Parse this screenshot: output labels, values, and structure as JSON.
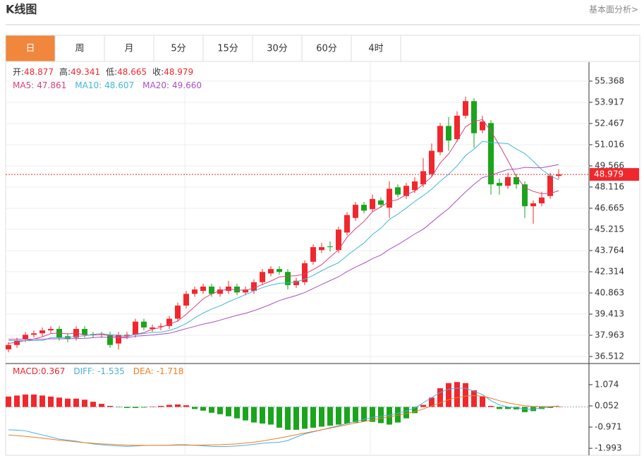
{
  "header": {
    "title": "K线图",
    "link": "基本面分析>"
  },
  "tabs": [
    "日",
    "周",
    "月",
    "5分",
    "15分",
    "30分",
    "60分",
    "4时"
  ],
  "active_tab": 0,
  "chart_data": [
    {
      "type": "candlestick",
      "ohlc_labels": [
        "开:",
        "高:",
        "低:",
        "收:"
      ],
      "up_color": "#f0282d",
      "down_color": "#1aa51c",
      "open": [
        37.0,
        37.3,
        37.7,
        38.0,
        38.1,
        38.3,
        38.4,
        37.9,
        37.8,
        38.4,
        38.05,
        38.0,
        38.0,
        37.4,
        37.9,
        38.0,
        38.9,
        38.4,
        38.55,
        38.6,
        39.1,
        40.0,
        40.8,
        41.0,
        41.3,
        40.8,
        41.0,
        41.3,
        40.9,
        41.0,
        41.6,
        42.2,
        42.5,
        42.3,
        41.4,
        41.6,
        43.0,
        43.8,
        44.05,
        43.8,
        45.0,
        46.0,
        46.9,
        46.6,
        47.2,
        46.7,
        48.1,
        47.5,
        47.9,
        48.3,
        49.0,
        50.5,
        52.3,
        51.4,
        53.0,
        54.0,
        52.0,
        52.5,
        48.4,
        48.2,
        48.8,
        48.3,
        46.8,
        47.0,
        47.5,
        48.877
      ],
      "high": [
        37.5,
        37.8,
        38.2,
        38.3,
        38.5,
        38.6,
        38.6,
        38.1,
        38.6,
        38.6,
        38.2,
        38.2,
        38.2,
        38.2,
        38.2,
        39.1,
        39.1,
        38.7,
        38.8,
        39.3,
        40.2,
        41.0,
        41.3,
        41.5,
        41.5,
        41.3,
        41.7,
        41.5,
        41.3,
        41.8,
        42.5,
        42.7,
        42.7,
        42.5,
        41.9,
        43.1,
        44.2,
        44.3,
        44.4,
        45.4,
        46.4,
        47.1,
        47.1,
        47.6,
        47.4,
        48.5,
        48.3,
        48.4,
        48.8,
        50.1,
        51.1,
        52.5,
        52.9,
        53.3,
        54.3,
        54.2,
        53.0,
        52.7,
        48.7,
        49.1,
        49.0,
        48.5,
        47.2,
        47.8,
        49.1,
        49.341
      ],
      "low": [
        36.8,
        37.1,
        37.5,
        37.8,
        37.9,
        38.1,
        37.6,
        37.5,
        37.6,
        37.8,
        37.8,
        37.8,
        37.1,
        37.0,
        37.7,
        37.8,
        38.3,
        38.2,
        38.3,
        38.4,
        38.9,
        39.8,
        40.6,
        40.8,
        40.6,
        40.6,
        40.8,
        40.7,
        40.7,
        40.8,
        41.4,
        42.0,
        42.1,
        41.1,
        41.2,
        41.4,
        42.8,
        43.6,
        43.7,
        43.6,
        44.8,
        45.8,
        46.3,
        46.4,
        46.7,
        46.0,
        47.4,
        47.3,
        47.7,
        48.1,
        48.8,
        50.3,
        50.6,
        51.2,
        52.8,
        50.8,
        51.8,
        47.6,
        47.6,
        48.0,
        48.0,
        46.0,
        45.6,
        46.8,
        47.3,
        48.665
      ],
      "close": [
        37.3,
        37.6,
        38.0,
        38.1,
        38.3,
        38.4,
        37.8,
        37.7,
        38.4,
        38.0,
        38.0,
        38.05,
        37.3,
        38.0,
        38.0,
        38.9,
        38.5,
        38.5,
        38.6,
        39.1,
        40.0,
        40.8,
        41.1,
        41.3,
        40.8,
        41.1,
        41.3,
        40.9,
        41.1,
        41.6,
        42.3,
        42.5,
        42.3,
        41.4,
        41.7,
        42.9,
        44.0,
        44.0,
        44.0,
        45.2,
        46.2,
        46.9,
        46.5,
        47.3,
        46.9,
        48.0,
        47.6,
        48.2,
        48.5,
        49.2,
        50.6,
        52.3,
        51.3,
        53.0,
        54.0,
        51.8,
        52.6,
        48.3,
        48.2,
        48.8,
        48.3,
        46.8,
        47.0,
        47.4,
        48.9,
        48.979
      ],
      "ma": [
        {
          "name": "MA5:",
          "color": "#d9417a",
          "values": [
            37.4,
            37.5,
            37.6,
            37.7,
            37.86,
            38.08,
            38.12,
            38.06,
            38.12,
            37.98,
            37.98,
            38.02,
            37.94,
            37.86,
            37.86,
            38.04,
            38.14,
            38.38,
            38.5,
            38.72,
            38.94,
            39.4,
            39.92,
            40.46,
            40.8,
            41.02,
            41.12,
            41.08,
            41.04,
            41.2,
            41.44,
            41.68,
            41.96,
            42.02,
            42.04,
            42.16,
            42.46,
            42.8,
            43.32,
            43.82,
            44.68,
            45.26,
            45.76,
            46.42,
            46.76,
            47.12,
            47.26,
            47.6,
            47.84,
            48.3,
            48.82,
            49.76,
            50.38,
            51.28,
            52.24,
            52.6,
            52.74,
            51.94,
            50.98,
            49.94,
            48.84,
            48.08,
            47.82,
            47.66,
            47.68,
            47.861
          ]
        },
        {
          "name": "MA10:",
          "color": "#3fb8d6",
          "values": [
            37.6,
            37.6,
            37.6,
            37.6,
            37.6,
            37.8,
            37.8,
            37.8,
            37.9,
            37.92,
            38.03,
            38.07,
            38.0,
            37.99,
            37.92,
            38.01,
            38.08,
            38.16,
            38.18,
            38.29,
            38.49,
            38.77,
            39.15,
            39.48,
            39.76,
            39.98,
            40.26,
            40.5,
            40.75,
            41.0,
            41.23,
            41.4,
            41.52,
            41.55,
            41.62,
            41.8,
            42.07,
            42.38,
            42.67,
            42.93,
            43.42,
            43.86,
            44.28,
            44.87,
            45.29,
            45.9,
            46.26,
            46.68,
            47.13,
            47.53,
            47.97,
            48.51,
            48.99,
            49.56,
            50.27,
            50.71,
            51.25,
            51.16,
            51.13,
            51.09,
            50.72,
            50.41,
            49.88,
            49.31,
            48.9,
            48.607
          ]
        },
        {
          "name": "MA20:",
          "color": "#a94fc4",
          "value_label": "49.660",
          "values": [
            37.7,
            37.7,
            37.7,
            37.7,
            37.7,
            37.72,
            37.72,
            37.73,
            37.74,
            37.75,
            37.8,
            37.85,
            37.8,
            37.8,
            37.78,
            37.9,
            37.94,
            37.98,
            38.04,
            38.1,
            38.26,
            38.42,
            38.57,
            38.73,
            38.84,
            39.0,
            39.17,
            39.33,
            39.47,
            39.65,
            39.86,
            40.09,
            40.34,
            40.52,
            40.69,
            40.89,
            41.17,
            41.44,
            41.71,
            41.97,
            42.33,
            42.63,
            42.9,
            43.21,
            43.46,
            43.85,
            44.17,
            44.53,
            44.9,
            45.23,
            45.7,
            46.19,
            46.64,
            47.22,
            47.78,
            48.3,
            48.76,
            48.92,
            49.13,
            49.31,
            49.35,
            49.46,
            49.44,
            49.44,
            49.54,
            49.66
          ]
        }
      ],
      "ylim": [
        36.03,
        56.67
      ],
      "yticks": [
        {
          "value": 55.368,
          "label": "55.368"
        },
        {
          "value": 53.917,
          "label": "53.917"
        },
        {
          "value": 52.467,
          "label": "52.467"
        },
        {
          "value": 51.016,
          "label": "51.016"
        },
        {
          "value": 49.566,
          "label": "49.566"
        },
        {
          "value": 48.116,
          "label": "48.116"
        },
        {
          "value": 46.665,
          "label": "46.665"
        },
        {
          "value": 45.215,
          "label": "45.215"
        },
        {
          "value": 43.764,
          "label": "43.764"
        },
        {
          "value": 42.314,
          "label": "42.314"
        },
        {
          "value": 40.863,
          "label": "40.863"
        },
        {
          "value": 39.413,
          "label": "39.413"
        },
        {
          "value": 37.963,
          "label": "37.963"
        },
        {
          "value": 36.512,
          "label": "36.512"
        }
      ],
      "grid": true
    },
    {
      "type": "macd",
      "histogram": [
        0.5,
        0.55,
        0.6,
        0.6,
        0.55,
        0.5,
        0.45,
        0.4,
        0.4,
        0.35,
        0.25,
        0.15,
        0.05,
        -0.02,
        -0.05,
        -0.05,
        -0.03,
        0.02,
        0.05,
        0.1,
        0.12,
        0.08,
        -0.1,
        -0.18,
        -0.28,
        -0.35,
        -0.45,
        -0.55,
        -0.65,
        -0.75,
        -0.8,
        -0.85,
        -1.0,
        -1.1,
        -1.1,
        -1.05,
        -1.0,
        -0.95,
        -0.9,
        -0.85,
        -0.8,
        -0.75,
        -0.7,
        -0.72,
        -0.78,
        -0.85,
        -0.75,
        -0.55,
        -0.3,
        0.1,
        0.45,
        0.9,
        1.15,
        1.2,
        1.15,
        0.8,
        0.5,
        0.05,
        -0.1,
        -0.1,
        -0.12,
        -0.25,
        -0.2,
        -0.1,
        -0.05,
        0.02
      ],
      "up_color": "#f0282d",
      "down_color": "#1aa51c",
      "series": [
        {
          "color": "#4aaee0",
          "values": [
            -1.1,
            -1.12,
            -1.15,
            -1.25,
            -1.35,
            -1.45,
            -1.55,
            -1.6,
            -1.65,
            -1.72,
            -1.78,
            -1.82,
            -1.86,
            -1.88,
            -1.9,
            -1.88,
            -1.86,
            -1.85,
            -1.85,
            -1.84,
            -1.82,
            -1.82,
            -1.85,
            -1.87,
            -1.9,
            -1.91,
            -1.9,
            -1.88,
            -1.85,
            -1.8,
            -1.75,
            -1.72,
            -1.7,
            -1.62,
            -1.45,
            -1.3,
            -1.2,
            -1.1,
            -1.0,
            -0.9,
            -0.8,
            -0.7,
            -0.6,
            -0.5,
            -0.45,
            -0.4,
            -0.3,
            -0.2,
            -0.05,
            0.2,
            0.45,
            0.7,
            0.85,
            0.9,
            0.9,
            0.75,
            0.6,
            0.3,
            0.1,
            0.0,
            -0.05,
            -0.1,
            -0.1,
            -0.05,
            0.0,
            0.05
          ]
        },
        {
          "color": "#f07c1e",
          "values": [
            -1.35,
            -1.38,
            -1.42,
            -1.46,
            -1.5,
            -1.55,
            -1.6,
            -1.64,
            -1.68,
            -1.72,
            -1.75,
            -1.78,
            -1.8,
            -1.82,
            -1.84,
            -1.85,
            -1.85,
            -1.85,
            -1.85,
            -1.85,
            -1.84,
            -1.84,
            -1.84,
            -1.84,
            -1.83,
            -1.82,
            -1.8,
            -1.78,
            -1.74,
            -1.7,
            -1.64,
            -1.57,
            -1.5,
            -1.42,
            -1.34,
            -1.26,
            -1.18,
            -1.1,
            -1.02,
            -0.94,
            -0.86,
            -0.78,
            -0.7,
            -0.62,
            -0.55,
            -0.48,
            -0.4,
            -0.32,
            -0.22,
            -0.1,
            0.05,
            0.2,
            0.35,
            0.45,
            0.52,
            0.55,
            0.52,
            0.42,
            0.3,
            0.2,
            0.12,
            0.06,
            0.03,
            0.02,
            0.02,
            0.03
          ]
        }
      ],
      "legend": [
        {
          "label": "MACD:",
          "value": 0.367,
          "color": "#e8262b"
        },
        {
          "label": "DIFF:",
          "value": -1.535,
          "color": "#4aaee0"
        },
        {
          "label": "DEA:",
          "value": -1.718,
          "color": "#f07c1e"
        }
      ],
      "ylim": [
        -2.33,
        1.99
      ],
      "yticks": [
        {
          "value": 1.074,
          "label": "1.074"
        },
        {
          "value": 0.052,
          "label": "0.052"
        },
        {
          "value": -0.971,
          "label": "-0.971"
        },
        {
          "value": -1.993,
          "label": "-1.993"
        }
      ]
    }
  ]
}
